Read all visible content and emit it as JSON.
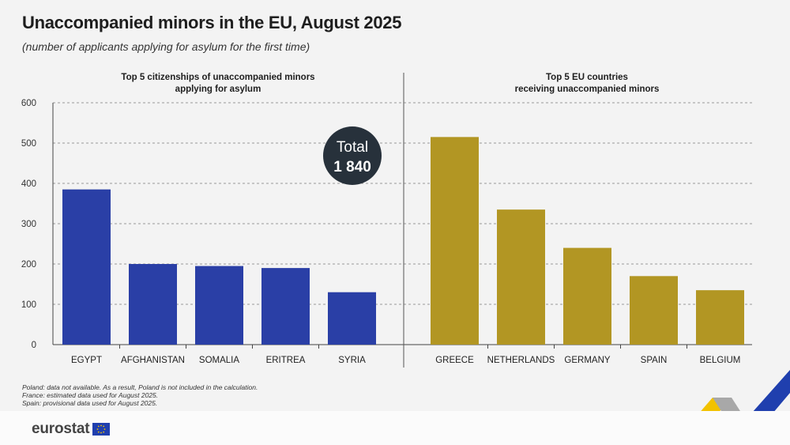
{
  "header": {
    "title": "Unaccompanied minors in the EU, August 2025",
    "subtitle": "(number of applicants applying for asylum for the first time)"
  },
  "chart_data": {
    "type": "bar",
    "ylim": [
      0,
      600
    ],
    "yticks": [
      0,
      100,
      200,
      300,
      400,
      500,
      600
    ],
    "grid": true,
    "colors": {
      "citizenships": "#2a3fa6",
      "countries": "#b29623",
      "badge": "#27313b"
    },
    "total_badge": {
      "line1": "Total",
      "line2": "1 840"
    },
    "panels": [
      {
        "title_lines": [
          "Top 5 citizenships of unaccompanied minors",
          "applying for asylum"
        ],
        "categories": [
          "EGYPT",
          "AFGHANISTAN",
          "SOMALIA",
          "ERITREA",
          "SYRIA"
        ],
        "values": [
          385,
          200,
          195,
          190,
          130
        ]
      },
      {
        "title_lines": [
          "Top 5 EU countries",
          "receiving unaccompanied minors"
        ],
        "categories": [
          "GREECE",
          "NETHERLANDS",
          "GERMANY",
          "SPAIN",
          "BELGIUM"
        ],
        "values": [
          515,
          335,
          240,
          170,
          135
        ]
      }
    ]
  },
  "notes": [
    "Poland: data not available. As a result, Poland is not included in the calculation.",
    "France: estimated  data used for August 2025.",
    "Spain: provisional data used for August 2025."
  ],
  "footer": {
    "logo_text": "eurostat"
  }
}
